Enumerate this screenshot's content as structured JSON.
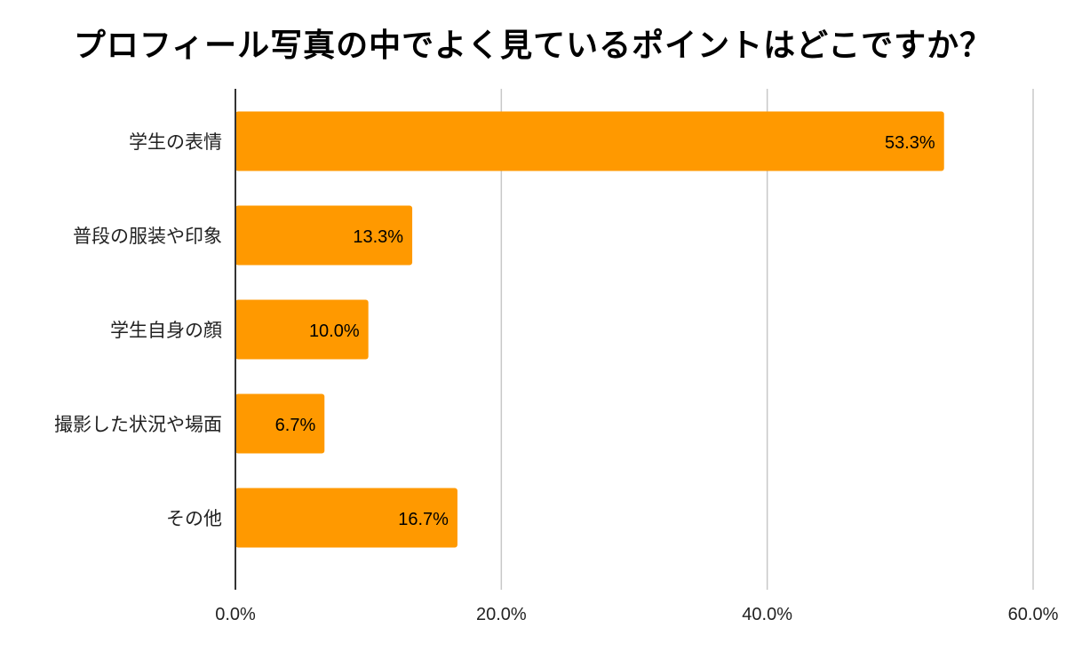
{
  "chart_data": {
    "type": "bar",
    "orientation": "horizontal",
    "title": "プロフィール写真の中でよく見ているポイントはどこですか？",
    "categories": [
      "学生の表情",
      "普段の服装や印象",
      "学生自身の顔",
      "撮影した状況や場面",
      "その他"
    ],
    "values": [
      53.3,
      13.3,
      10.0,
      6.7,
      16.7
    ],
    "data_labels": [
      "53.3%",
      "13.3%",
      "10.0%",
      "6.7%",
      "16.7%"
    ],
    "xlim": [
      0,
      60
    ],
    "x_ticks": [
      0,
      20,
      40,
      60
    ],
    "x_tick_labels": [
      "0.0%",
      "20.0%",
      "40.0%",
      "60.0%"
    ],
    "xlabel": "",
    "ylabel": "",
    "grid": true,
    "legend": "none",
    "bar_color": "#FF9900"
  }
}
